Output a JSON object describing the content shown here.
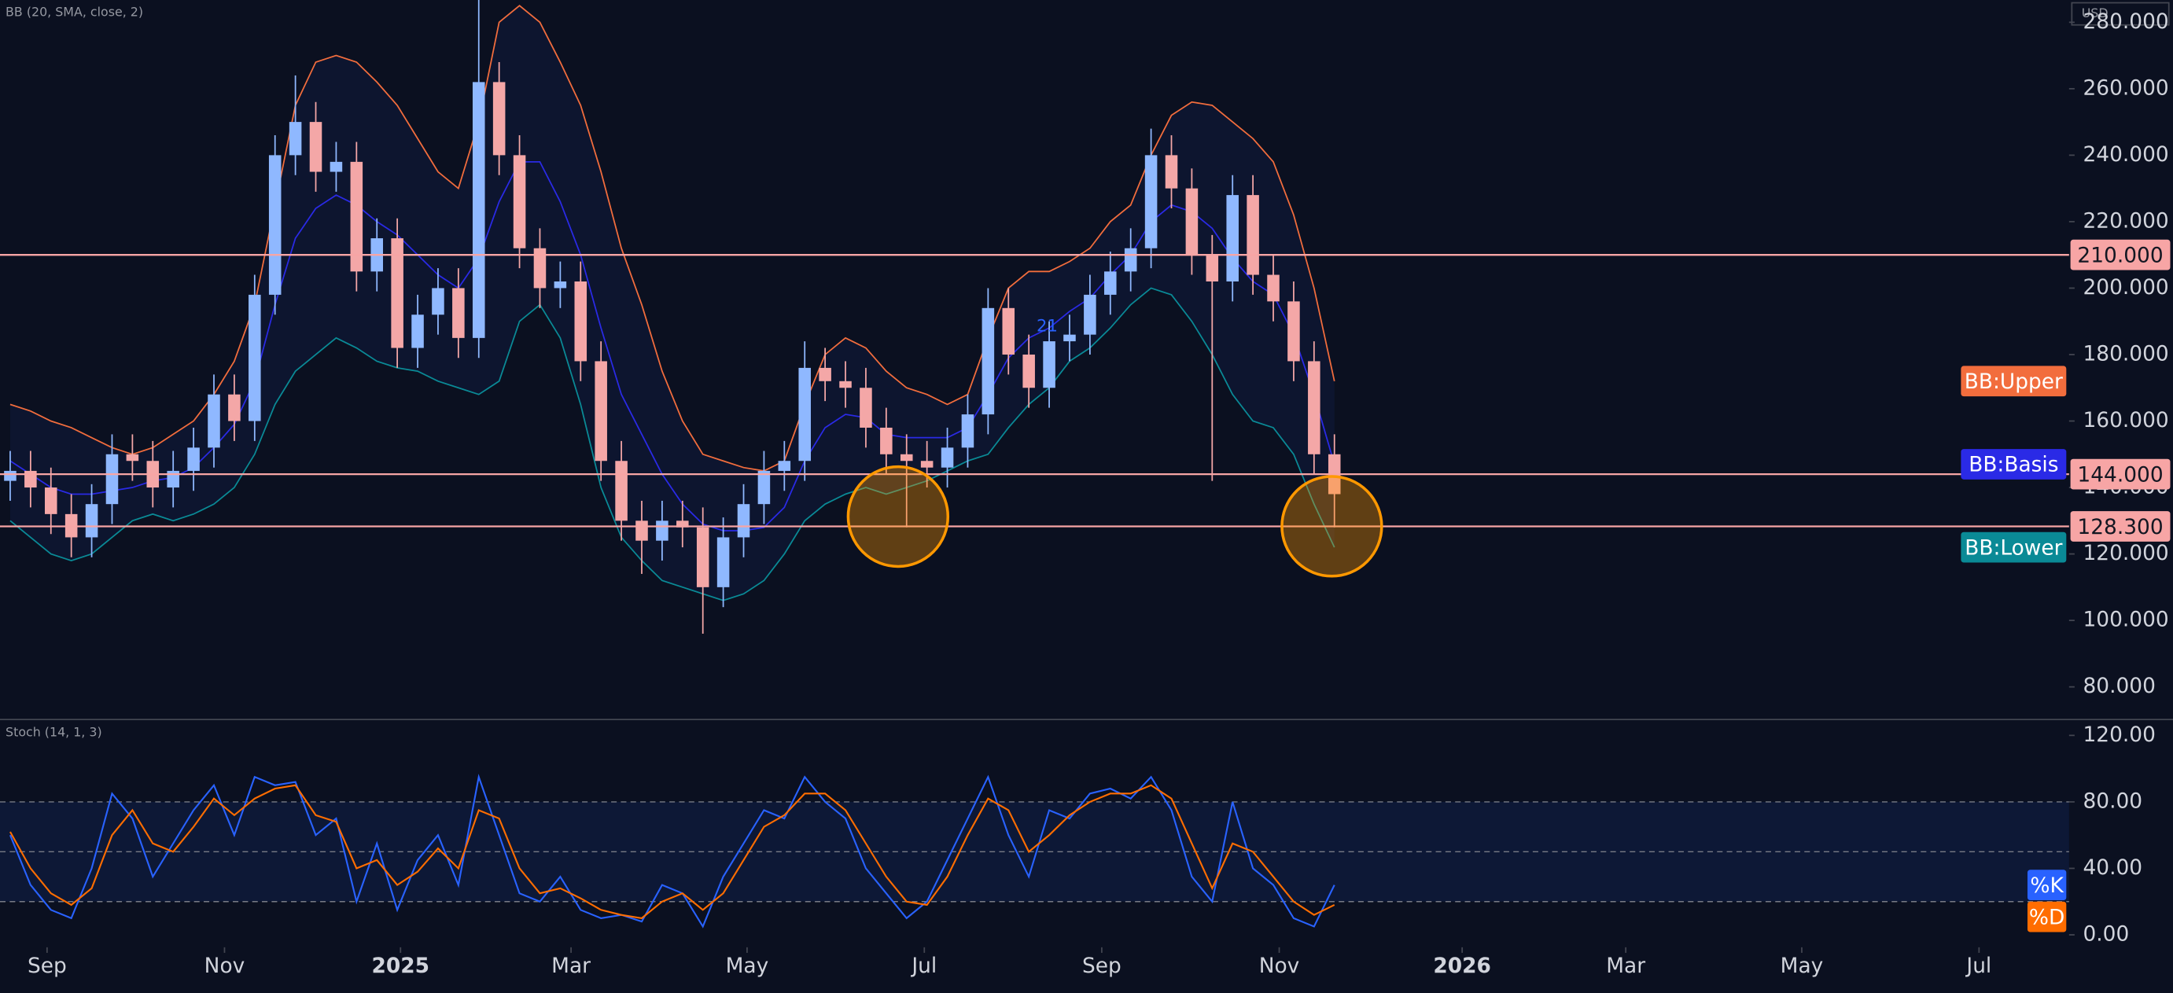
{
  "currency": "USD",
  "chart_data": [
    {
      "type": "candlestick",
      "title": "BB (20, SMA, close, 2)",
      "up_color": "#8fb8ff",
      "down_color": "#f4a7a7",
      "open": [
        142,
        145,
        140,
        132,
        125,
        135,
        150,
        148,
        140,
        145,
        152,
        168,
        160,
        198,
        240,
        250,
        235,
        238,
        205,
        215,
        182,
        192,
        200,
        185,
        262,
        240,
        212,
        200,
        202,
        178,
        148,
        130,
        124,
        130,
        128,
        110,
        125,
        135,
        145,
        148,
        176,
        172,
        170,
        158,
        150,
        148,
        146,
        152,
        162,
        194,
        180,
        170,
        184,
        186,
        198,
        205,
        212,
        240,
        230,
        210,
        202,
        228,
        204,
        196,
        178,
        150
      ],
      "high": [
        151,
        151,
        146,
        138,
        141,
        156,
        156,
        154,
        151,
        158,
        174,
        174,
        204,
        246,
        264,
        256,
        244,
        244,
        221,
        221,
        198,
        206,
        206,
        290,
        268,
        246,
        218,
        208,
        208,
        184,
        154,
        136,
        136,
        136,
        134,
        131,
        141,
        151,
        154,
        184,
        182,
        178,
        176,
        164,
        156,
        154,
        158,
        168,
        200,
        200,
        186,
        190,
        192,
        204,
        211,
        218,
        248,
        246,
        236,
        216,
        234,
        234,
        210,
        202,
        184,
        156
      ],
      "low": [
        136,
        134,
        126,
        119,
        119,
        129,
        142,
        134,
        134,
        139,
        146,
        154,
        154,
        192,
        234,
        229,
        229,
        199,
        199,
        176,
        176,
        186,
        179,
        179,
        234,
        206,
        194,
        194,
        172,
        142,
        124,
        114,
        118,
        122,
        96,
        104,
        119,
        129,
        139,
        142,
        166,
        164,
        152,
        144,
        128,
        140,
        140,
        146,
        156,
        174,
        164,
        164,
        178,
        180,
        192,
        199,
        206,
        224,
        204,
        142,
        196,
        198,
        190,
        172,
        144,
        128
      ],
      "close": [
        145,
        140,
        132,
        125,
        135,
        150,
        148,
        140,
        145,
        152,
        168,
        160,
        198,
        240,
        250,
        235,
        238,
        205,
        215,
        182,
        192,
        200,
        185,
        262,
        240,
        212,
        200,
        202,
        178,
        148,
        130,
        124,
        130,
        128,
        110,
        125,
        135,
        145,
        148,
        176,
        172,
        170,
        158,
        150,
        148,
        146,
        152,
        162,
        194,
        180,
        170,
        184,
        186,
        198,
        205,
        212,
        240,
        230,
        210,
        202,
        228,
        204,
        196,
        178,
        150,
        138
      ],
      "series": [
        {
          "name": "BB:Upper",
          "color": "#f26d3d",
          "values": [
            165,
            163,
            160,
            158,
            155,
            152,
            150,
            152,
            156,
            160,
            168,
            178,
            195,
            225,
            255,
            268,
            270,
            268,
            262,
            255,
            245,
            235,
            230,
            250,
            280,
            285,
            280,
            268,
            255,
            235,
            212,
            195,
            175,
            160,
            150,
            148,
            146,
            145,
            148,
            165,
            180,
            185,
            182,
            175,
            170,
            168,
            165,
            168,
            185,
            200,
            205,
            205,
            208,
            212,
            220,
            225,
            240,
            252,
            256,
            255,
            250,
            245,
            238,
            222,
            200,
            172
          ]
        },
        {
          "name": "BB:Basis",
          "color": "#2a2ae6",
          "values": [
            148,
            144,
            140,
            138,
            138,
            139,
            140,
            142,
            143,
            146,
            152,
            159,
            172,
            195,
            215,
            224,
            228,
            225,
            220,
            216,
            210,
            204,
            200,
            209,
            226,
            238,
            238,
            226,
            210,
            188,
            168,
            156,
            144,
            135,
            129,
            127,
            127,
            128,
            134,
            148,
            158,
            162,
            161,
            156,
            155,
            155,
            155,
            158,
            168,
            179,
            185,
            188,
            193,
            197,
            204,
            210,
            220,
            225,
            223,
            218,
            209,
            202,
            198,
            186,
            168,
            147
          ]
        },
        {
          "name": "BB:Lower",
          "color": "#0a8a96",
          "values": [
            130,
            125,
            120,
            118,
            120,
            125,
            130,
            132,
            130,
            132,
            135,
            140,
            150,
            165,
            175,
            180,
            185,
            182,
            178,
            176,
            175,
            172,
            170,
            168,
            172,
            190,
            195,
            185,
            165,
            140,
            125,
            118,
            112,
            110,
            108,
            106,
            108,
            112,
            120,
            130,
            135,
            138,
            140,
            138,
            140,
            142,
            145,
            148,
            150,
            158,
            165,
            170,
            178,
            182,
            188,
            195,
            200,
            198,
            190,
            180,
            168,
            160,
            158,
            150,
            135,
            122
          ]
        }
      ],
      "levels": [
        {
          "value": 210,
          "label": "210.000"
        },
        {
          "value": 144,
          "label": "144.000"
        },
        {
          "value": 128.3,
          "label": "128.300"
        }
      ],
      "level_color": "#f7a5a5",
      "annotation": "21",
      "ylim": [
        70.4,
        286.7
      ],
      "yticks": [
        {
          "value": 80,
          "label": "80.000"
        },
        {
          "value": 100,
          "label": "100.000"
        },
        {
          "value": 120,
          "label": "120.000"
        },
        {
          "value": 140,
          "label": "140.000"
        },
        {
          "value": 160,
          "label": "160.000"
        },
        {
          "value": 180,
          "label": "180.000"
        },
        {
          "value": 200,
          "label": "200.000"
        },
        {
          "value": 220,
          "label": "220.000"
        },
        {
          "value": 240,
          "label": "240.000"
        },
        {
          "value": 260,
          "label": "260.000"
        },
        {
          "value": 280,
          "label": "280.000"
        }
      ],
      "xlim": [
        0,
        101.56
      ],
      "xticks": [
        {
          "value": 2.31,
          "label": "Sep"
        },
        {
          "value": 11.02,
          "label": "Nov"
        },
        {
          "value": 19.66,
          "label": "2025"
        },
        {
          "value": 28.03,
          "label": "Mar"
        },
        {
          "value": 36.67,
          "label": "May"
        },
        {
          "value": 45.37,
          "label": "Jul"
        },
        {
          "value": 54.08,
          "label": "Sep"
        },
        {
          "value": 62.79,
          "label": "Nov"
        },
        {
          "value": 71.77,
          "label": "2026"
        },
        {
          "value": 79.8,
          "label": "Mar"
        },
        {
          "value": 88.44,
          "label": "May"
        },
        {
          "value": 97.14,
          "label": "Jul"
        }
      ]
    },
    {
      "type": "line",
      "title": "Stoch (14, 1, 3)",
      "series": [
        {
          "name": "%K",
          "color": "#2962ff",
          "values": [
            60,
            30,
            15,
            10,
            40,
            85,
            70,
            35,
            55,
            75,
            90,
            60,
            95,
            90,
            92,
            60,
            70,
            20,
            55,
            15,
            45,
            60,
            30,
            95,
            60,
            25,
            20,
            35,
            15,
            10,
            12,
            8,
            30,
            25,
            5,
            35,
            55,
            75,
            70,
            95,
            80,
            70,
            40,
            25,
            10,
            20,
            45,
            70,
            95,
            60,
            35,
            75,
            70,
            85,
            88,
            82,
            95,
            75,
            35,
            20,
            80,
            40,
            30,
            10,
            5,
            30
          ]
        },
        {
          "name": "%D",
          "color": "#ff6d00",
          "values": [
            62,
            40,
            25,
            18,
            28,
            60,
            75,
            55,
            50,
            65,
            82,
            72,
            82,
            88,
            90,
            72,
            68,
            40,
            45,
            30,
            38,
            52,
            40,
            75,
            70,
            40,
            25,
            28,
            22,
            15,
            12,
            10,
            20,
            25,
            15,
            25,
            45,
            65,
            72,
            85,
            85,
            75,
            55,
            35,
            20,
            18,
            35,
            60,
            82,
            75,
            50,
            60,
            72,
            80,
            85,
            85,
            90,
            82,
            55,
            28,
            55,
            50,
            35,
            20,
            12,
            18
          ]
        }
      ],
      "bands": [
        20,
        50,
        80
      ],
      "ylim": [
        -35,
        130
      ],
      "yticks": [
        {
          "value": 0,
          "label": "0.00"
        },
        {
          "value": 40,
          "label": "40.00"
        },
        {
          "value": 80,
          "label": "80.00"
        },
        {
          "value": 120,
          "label": "120.00"
        }
      ]
    }
  ]
}
